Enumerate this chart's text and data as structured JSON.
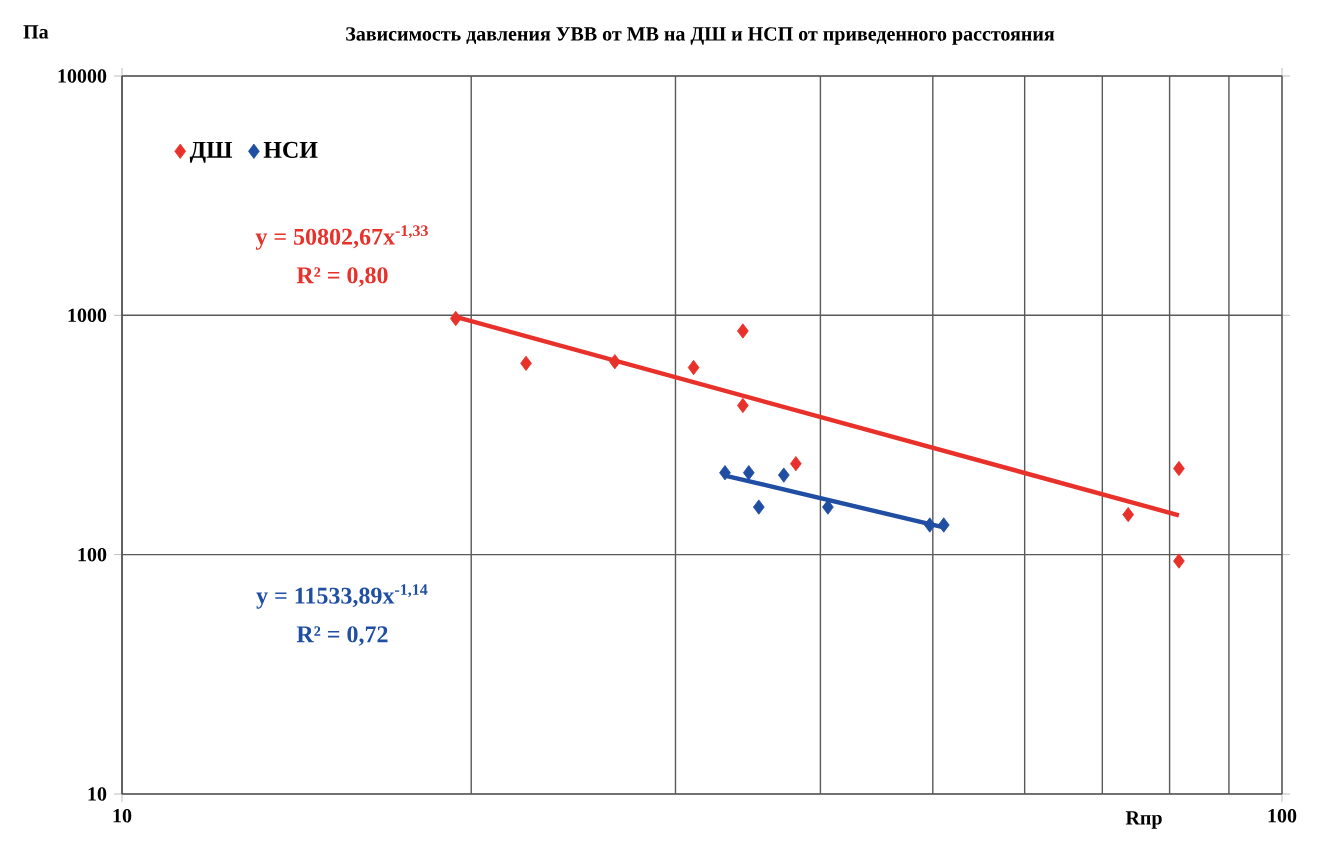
{
  "chart_data": {
    "type": "scatter",
    "title": "Зависимость давления УВВ от МВ на ДШ и НСП от приведенного расстояния",
    "xlabel": "Rпр",
    "ylabel": "Па",
    "log": "xy",
    "grid": true,
    "legend": "top left",
    "marker": "diamond",
    "xlim": [
      10,
      100
    ],
    "ylim": [
      10,
      10000
    ],
    "xticks": [
      10,
      100
    ],
    "yticks": [
      10,
      100,
      1000,
      10000
    ],
    "series": [
      {
        "name": "ДШ",
        "color": "#e8312a",
        "x": [
          19.4,
          22.3,
          26.6,
          31.1,
          34.3,
          34.3,
          38.1,
          73.7,
          81.5,
          81.5
        ],
        "values": [
          970,
          630,
          640,
          605,
          860,
          420,
          240,
          147,
          229,
          94
        ]
      },
      {
        "name": "НСИ",
        "color": "#1f4ea3",
        "x": [
          33.1,
          34.7,
          35.4,
          37.2,
          40.6,
          49.7,
          51.1
        ],
        "values": [
          220,
          220,
          158,
          215,
          158,
          133,
          133
        ]
      },
      {
        "type": "line",
        "color": "#e8312a",
        "marker": "none",
        "x": [
          19.4,
          81.5
        ],
        "values": [
          985,
          146
        ]
      },
      {
        "type": "line",
        "color": "#1f4ea3",
        "marker": "none",
        "x": [
          33.1,
          51.1
        ],
        "values": [
          214,
          130
        ]
      }
    ],
    "annotations": [
      "y = 50802,67x$^{-1,33}$",
      "R² = 0,80",
      "y = 11533,89x$^{-1,14}$",
      "R² = 0,72"
    ]
  }
}
